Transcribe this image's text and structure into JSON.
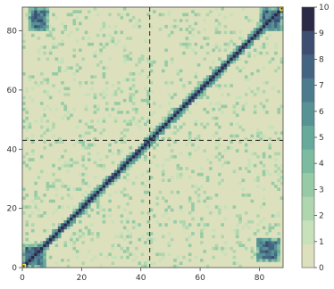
{
  "chart_data": {
    "type": "heatmap",
    "title": "",
    "xlabel": "",
    "ylabel": "",
    "xlim": [
      0,
      88
    ],
    "ylim": [
      0,
      88
    ],
    "size": 88,
    "x_ticks": [
      0,
      20,
      40,
      60,
      80
    ],
    "y_ticks": [
      0,
      20,
      40,
      60,
      80
    ],
    "grid": false,
    "reference_lines": {
      "vertical_x": 43,
      "horizontal_y": 43,
      "style": "dashed"
    },
    "colorbar": {
      "min": 0,
      "max": 10,
      "ticks": [
        0,
        1,
        2,
        3,
        4,
        5,
        6,
        7,
        8,
        9,
        10
      ],
      "colors": [
        "#dde0bd",
        "#c7e1ba",
        "#afd6ae",
        "#96cba6",
        "#7dbba0",
        "#67a99b",
        "#579395",
        "#4b7b8d",
        "#446582",
        "#3d4e72",
        "#2b2a46"
      ]
    },
    "structure": {
      "diagonal_value": 10,
      "near_diagonal_value": 6,
      "background_value": 0,
      "sparse_off_diagonal_values": [
        1,
        2,
        3
      ],
      "dense_blocks": [
        {
          "x_range": [
            0,
            7
          ],
          "y_range": [
            0,
            7
          ],
          "value": 8
        },
        {
          "x_range": [
            80,
            87
          ],
          "y_range": [
            80,
            87
          ],
          "value": 8
        },
        {
          "x_range": [
            2,
            8
          ],
          "y_range": [
            80,
            87
          ],
          "value": 8
        },
        {
          "x_range": [
            79,
            86
          ],
          "y_range": [
            2,
            9
          ],
          "value": 8
        }
      ],
      "highlighted_cells": [
        {
          "x": 0,
          "y": 0,
          "color": "#f0e442"
        },
        {
          "x": 87,
          "y": 87,
          "color": "#f0e442"
        }
      ]
    }
  }
}
